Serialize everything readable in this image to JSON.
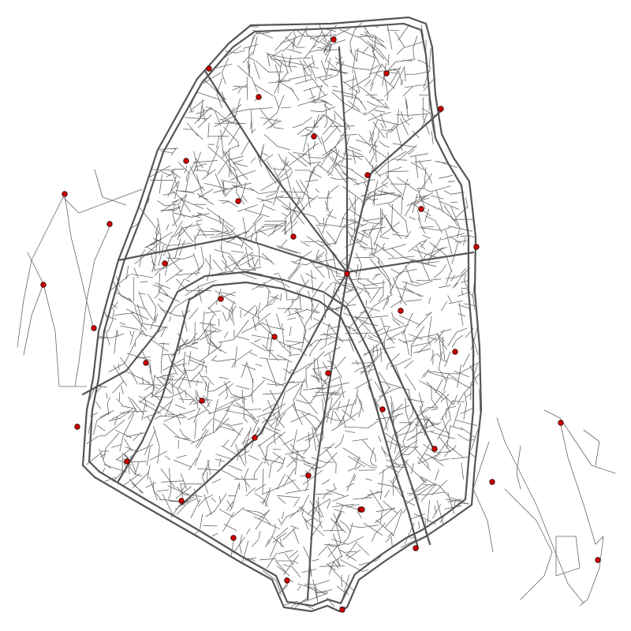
{
  "map": {
    "style": {
      "background": "#ffffff",
      "street_color": "#555555",
      "marker_fill": "#cc0000",
      "marker_stroke": "#330000"
    },
    "street_network": {
      "description_kind": "road-network",
      "seed": 20240531,
      "minor_street_count": 1700
    },
    "markers_count": 41
  }
}
